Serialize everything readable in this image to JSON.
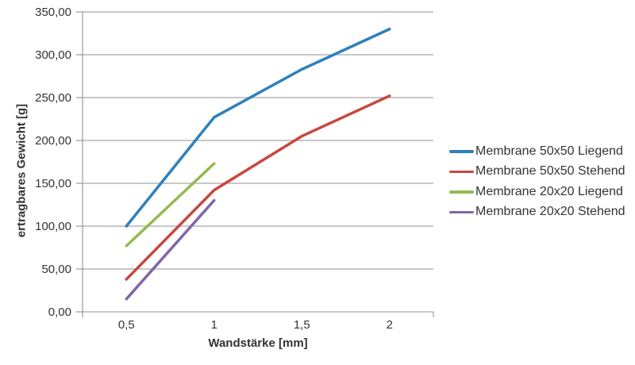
{
  "chart_data": {
    "type": "line",
    "title": "",
    "xlabel": "Wandstärke [mm]",
    "ylabel": "ertragbares Gewicht [g]",
    "x": [
      0.5,
      1,
      1.5,
      2
    ],
    "x_tick_labels": [
      "0,5",
      "1",
      "1,5",
      "2"
    ],
    "ylim": [
      0,
      350
    ],
    "y_ticks": [
      0,
      50,
      100,
      150,
      200,
      250,
      300,
      350
    ],
    "y_tick_labels": [
      "0,00",
      "50,00",
      "100,00",
      "150,00",
      "200,00",
      "250,00",
      "300,00",
      "350,00"
    ],
    "grid": true,
    "legend_position": "right",
    "series": [
      {
        "name": "Membrane 50x50 Liegend",
        "color": "#2E80BC",
        "values": [
          100,
          227,
          283,
          330
        ]
      },
      {
        "name": "Membrane 50x50 Stehend",
        "color": "#C8473F",
        "values": [
          38,
          142,
          205,
          252
        ]
      },
      {
        "name": "Membrane 20x20 Liegend",
        "color": "#95B954",
        "values": [
          77,
          173,
          null,
          null
        ]
      },
      {
        "name": "Membrane 20x20 Stehend",
        "color": "#7F66A9",
        "values": [
          15,
          130,
          null,
          null
        ]
      }
    ],
    "colors": {
      "grid": "#A6A6A6",
      "axis": "#9A9A9A",
      "text": "#333333",
      "background": "#FFFFFF"
    }
  }
}
